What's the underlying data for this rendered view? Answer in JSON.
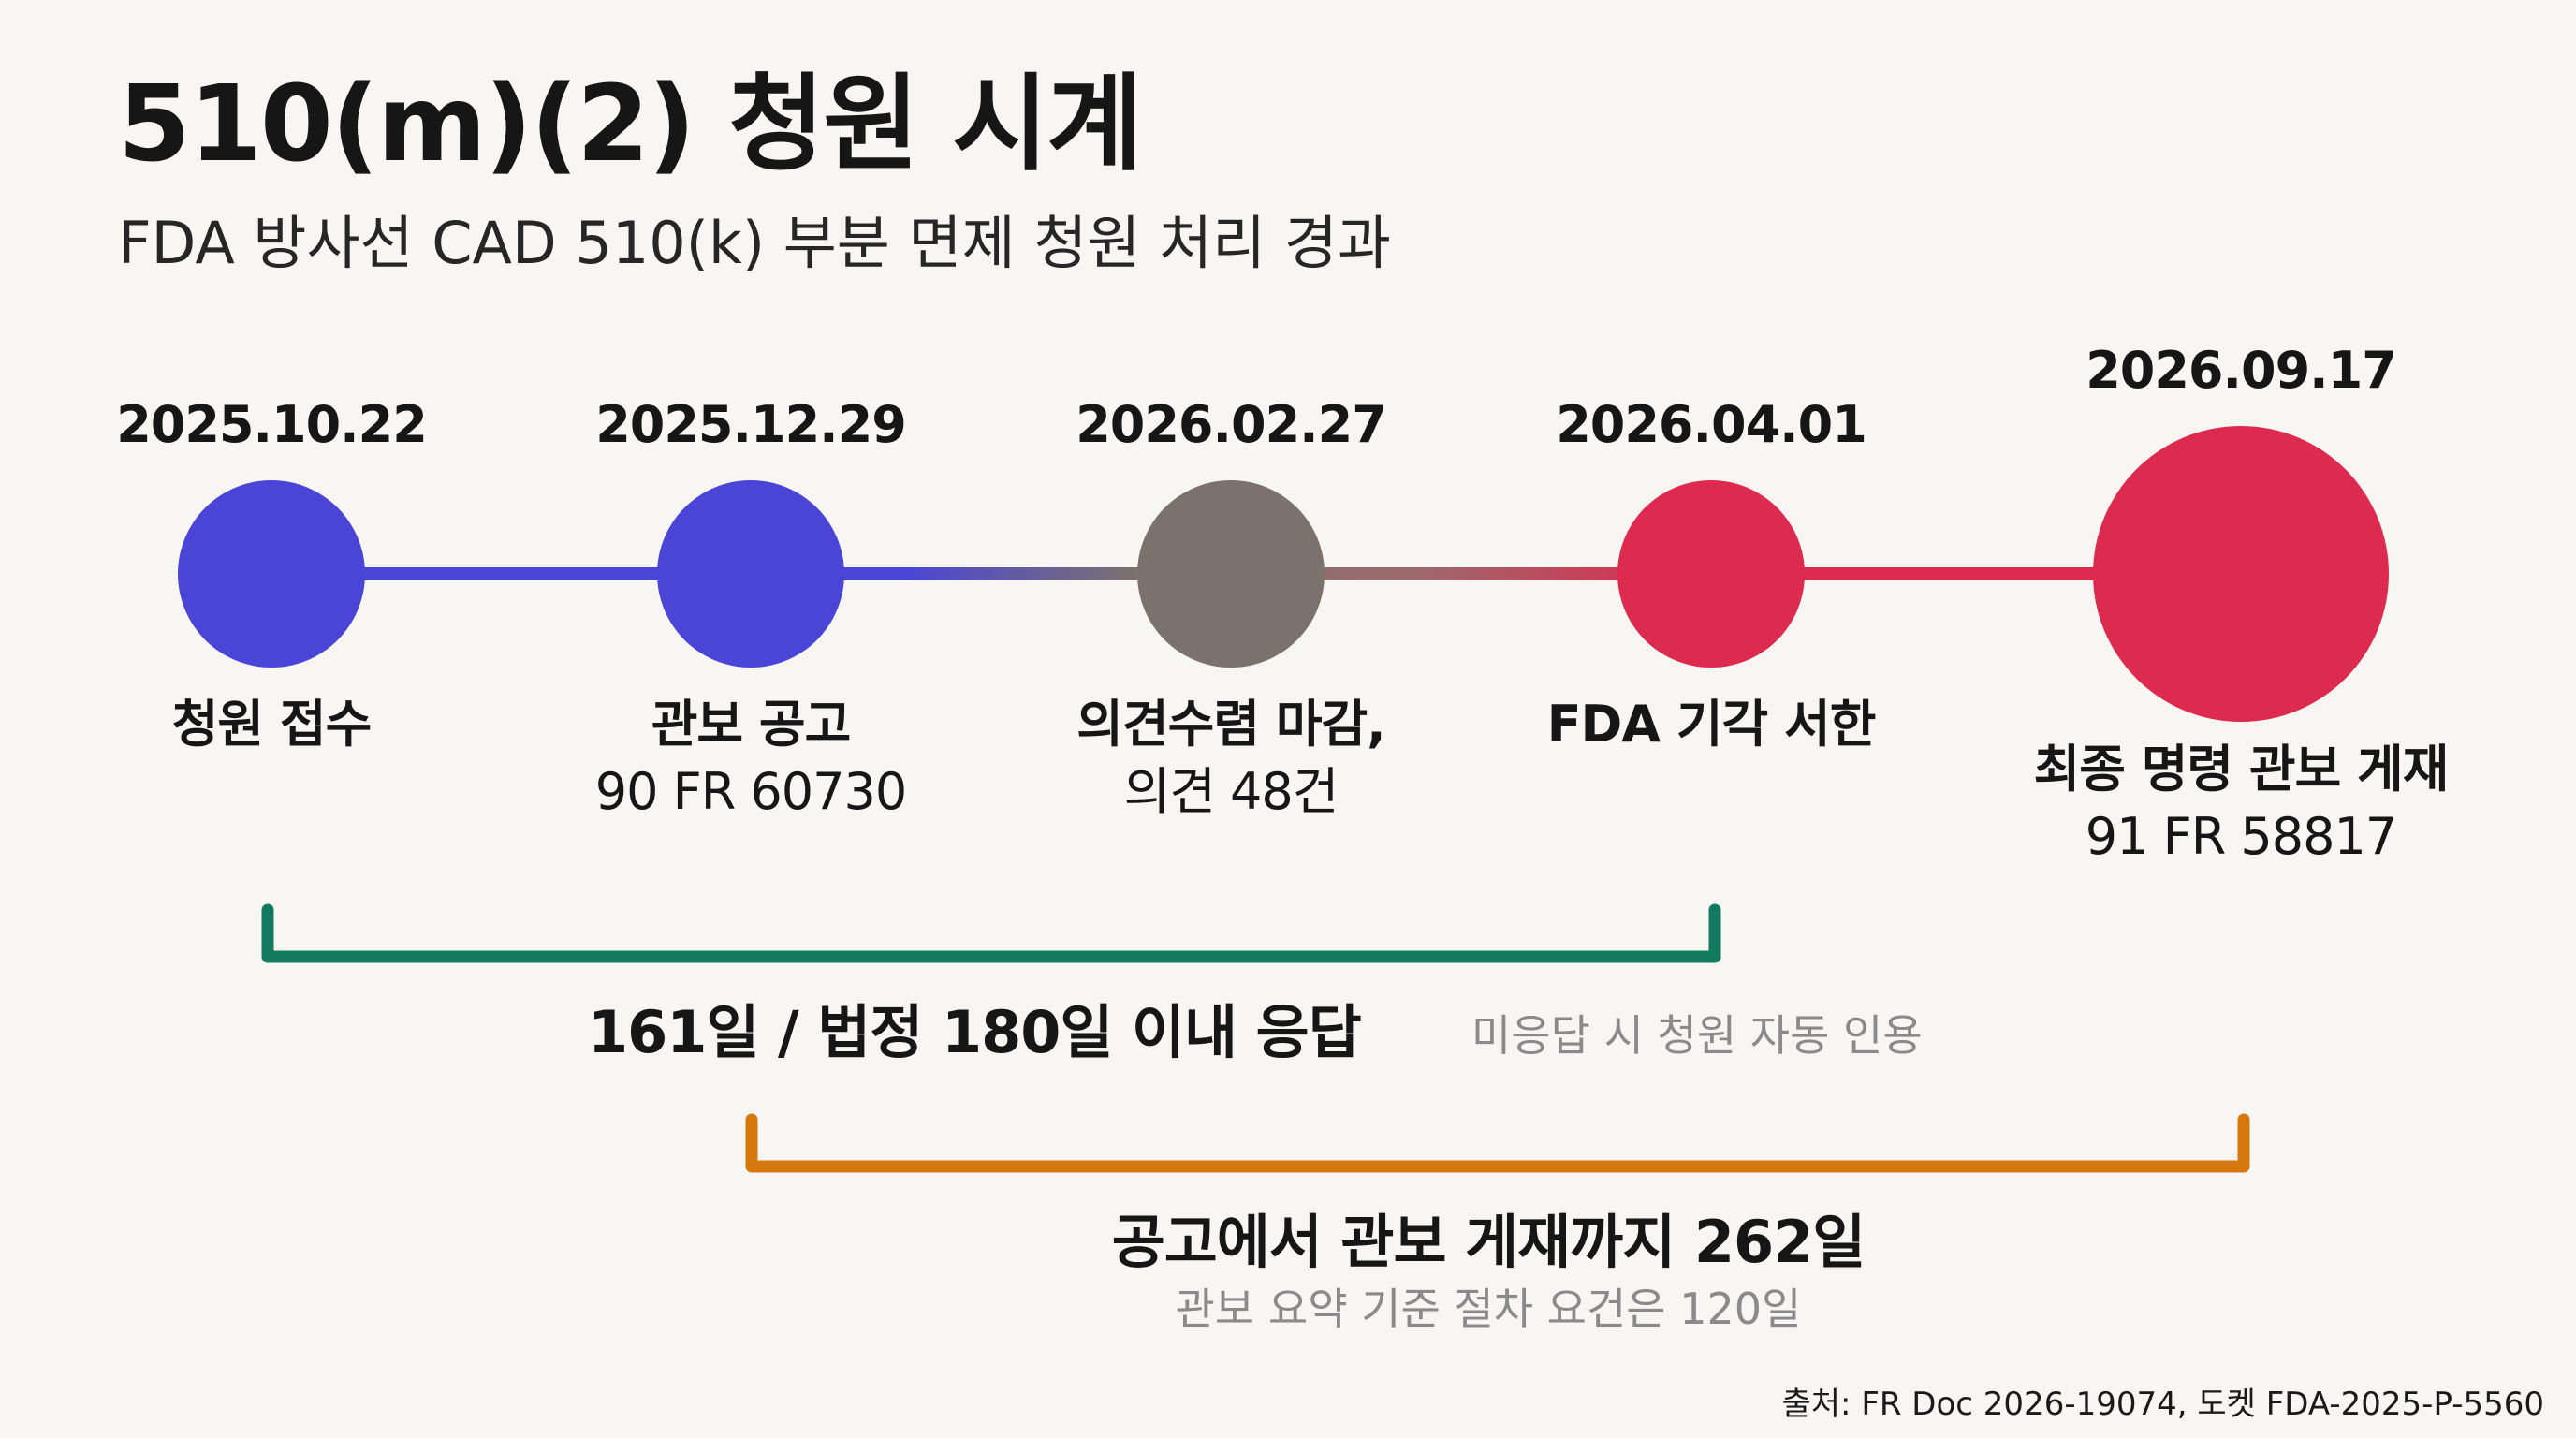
{
  "title": "510(m)(2) 청원 시계",
  "subtitle": "FDA 방사선 CAD 510(k) 부분 면제 청원 처리 경과",
  "events": [
    {
      "date": "2025.10.22",
      "label": "청원 접수",
      "sub": "",
      "color": "#4a45d6"
    },
    {
      "date": "2025.12.29",
      "label": "관보 공고",
      "sub": "90 FR 60730",
      "color": "#4a45d6"
    },
    {
      "date": "2026.02.27",
      "label": "의견수렴 마감,",
      "sub": "의견 48건",
      "color": "#7c726d"
    },
    {
      "date": "2026.04.01",
      "label": "FDA 기각 서한",
      "sub": "",
      "color": "#dd2a4f"
    },
    {
      "date": "2026.09.17",
      "label": "최종 명령 관보 게재",
      "sub": "91 FR 58817",
      "color": "#dd2a4f"
    }
  ],
  "spans": {
    "response": {
      "label": "161일 / 법정 180일 이내 응답",
      "note": "미응답 시 청원 자동 인용",
      "color": "#127a5e"
    },
    "publication": {
      "label": "공고에서 관보 게재까지 262일",
      "note": "관보 요약 기준 절차 요건은 120일",
      "color": "#d4780e"
    }
  },
  "source": "출처: FR Doc 2026-19074, 도켓 FDA-2025-P-5560"
}
